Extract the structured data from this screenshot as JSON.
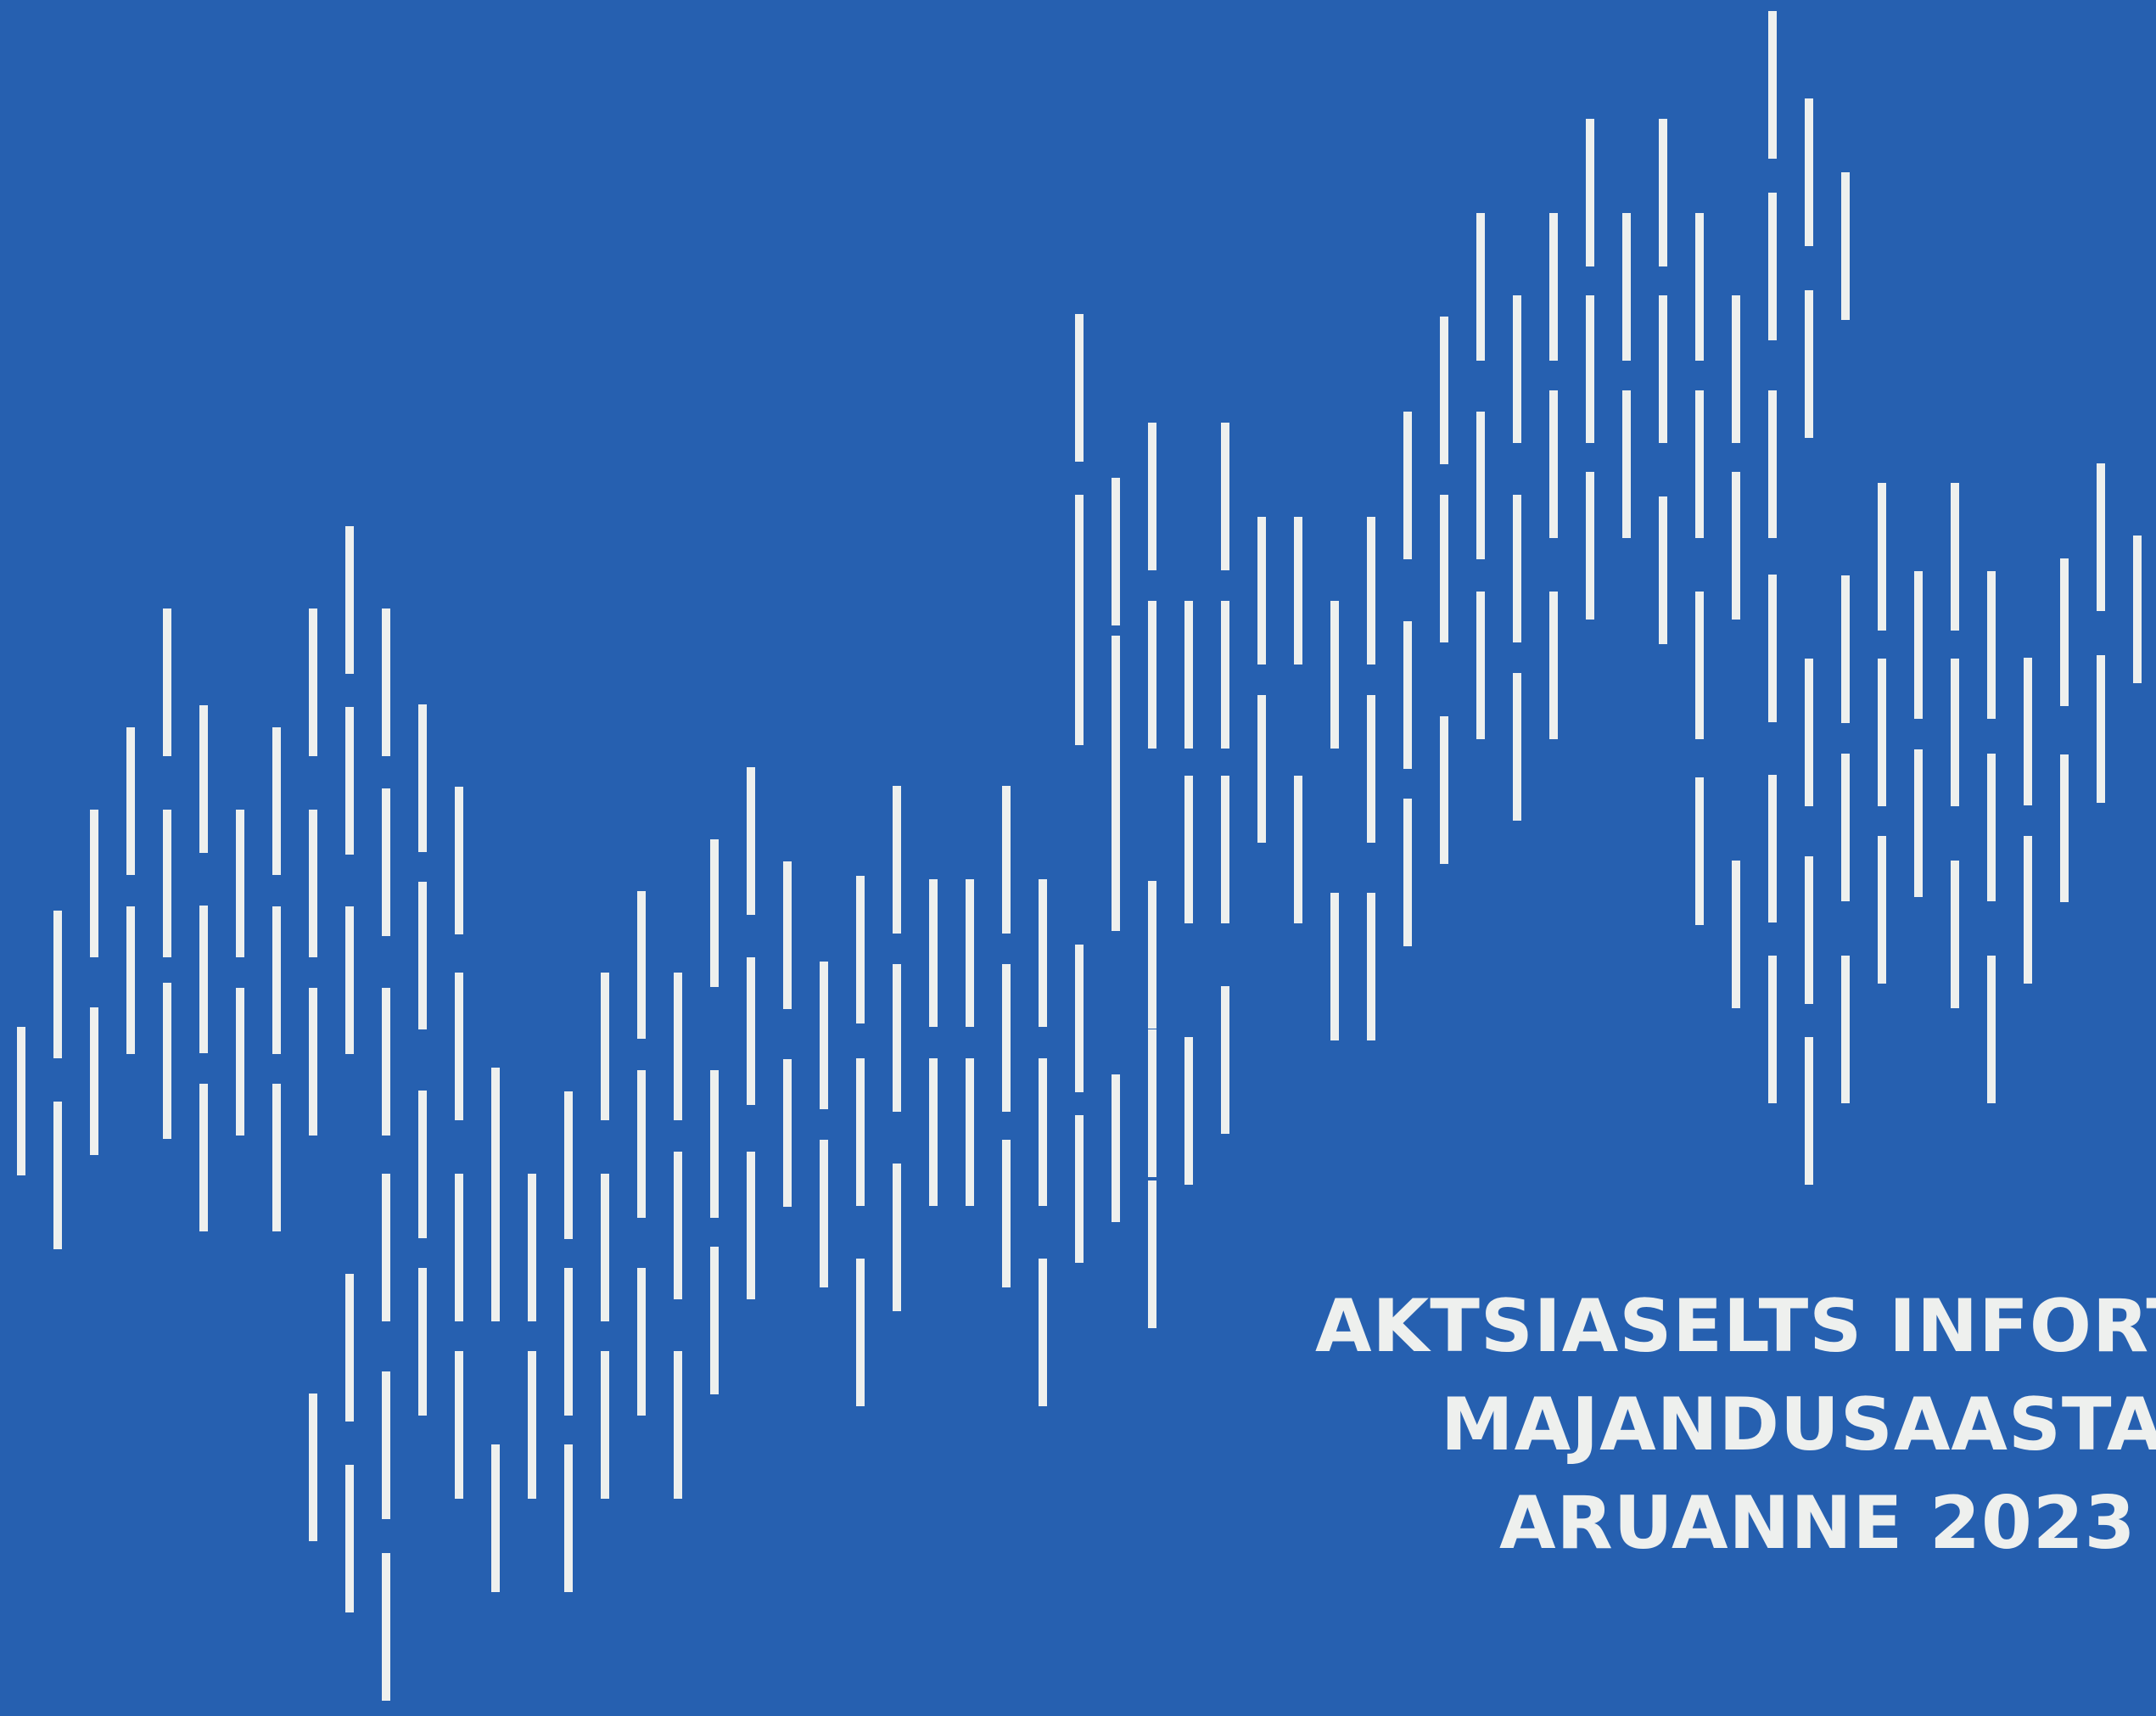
{
  "document": {
    "title_line_1": "AKTSIASELTS INFORTAR",
    "title_line_2": "MAJANDUSAASTA",
    "title_line_3": "ARUANNE 2023"
  },
  "colors": {
    "background": "#2660B0",
    "foreground": "#EEF0EE"
  }
}
